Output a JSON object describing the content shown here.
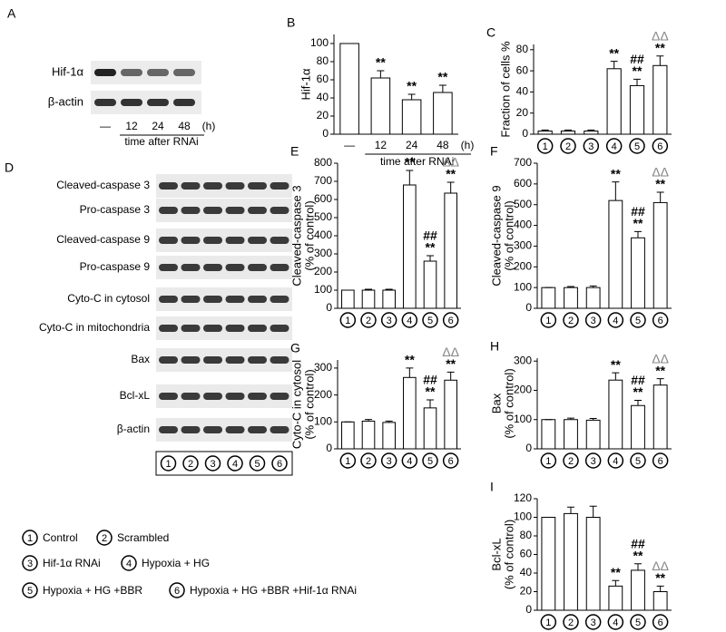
{
  "chart_data": [
    {
      "type": "bar",
      "panel": "B",
      "ylabel": [
        "Hif-1α"
      ],
      "categories": [
        "—",
        "12",
        "24",
        "48"
      ],
      "unit": "(h)",
      "xlabel": "time after RNAi",
      "values": [
        100,
        62,
        38,
        46
      ],
      "errors": [
        0,
        8,
        6,
        8
      ],
      "annotations": [
        null,
        [
          "**"
        ],
        [
          "**"
        ],
        [
          "**"
        ]
      ],
      "ylim": [
        0,
        110
      ],
      "yticks": [
        0,
        20,
        40,
        60,
        80,
        100
      ],
      "color": "#ffffff",
      "circled_categories": false
    },
    {
      "type": "bar",
      "panel": "C",
      "ylabel": [
        "Fraction of cells %"
      ],
      "categories": [
        "1",
        "2",
        "3",
        "4",
        "5",
        "6"
      ],
      "values": [
        3,
        3,
        3,
        62,
        46,
        65
      ],
      "errors": [
        1,
        1,
        1,
        7,
        6,
        9
      ],
      "annotations": [
        null,
        null,
        null,
        [
          "**"
        ],
        [
          "##",
          "**"
        ],
        [
          "ΔΔ",
          "**"
        ]
      ],
      "ylim": [
        0,
        85
      ],
      "yticks": [
        0,
        20,
        40,
        60,
        80
      ],
      "color": "#ffffff",
      "circled_categories": true
    },
    {
      "type": "bar",
      "panel": "E",
      "ylabel": [
        "Cleaved-caspase 3",
        "(% of control)"
      ],
      "categories": [
        "1",
        "2",
        "3",
        "4",
        "5",
        "6"
      ],
      "values": [
        100,
        100,
        100,
        680,
        260,
        635
      ],
      "errors": [
        0,
        5,
        5,
        80,
        30,
        60
      ],
      "annotations": [
        null,
        null,
        null,
        [
          "**"
        ],
        [
          "##",
          "**"
        ],
        [
          "ΔΔ",
          "**"
        ]
      ],
      "ylim": [
        0,
        800
      ],
      "yticks": [
        0,
        100,
        200,
        300,
        400,
        500,
        600,
        700,
        800
      ],
      "color": "#ffffff",
      "circled_categories": true
    },
    {
      "type": "bar",
      "panel": "F",
      "ylabel": [
        "Cleaved-caspase 9",
        "(% of control)"
      ],
      "categories": [
        "1",
        "2",
        "3",
        "4",
        "5",
        "6"
      ],
      "values": [
        100,
        100,
        100,
        520,
        340,
        510
      ],
      "errors": [
        0,
        5,
        8,
        90,
        30,
        50
      ],
      "annotations": [
        null,
        null,
        null,
        [
          "**"
        ],
        [
          "##",
          "**"
        ],
        [
          "ΔΔ",
          "**"
        ]
      ],
      "ylim": [
        0,
        700
      ],
      "yticks": [
        0,
        100,
        200,
        300,
        400,
        500,
        600,
        700
      ],
      "color": "#ffffff",
      "circled_categories": true
    },
    {
      "type": "bar",
      "panel": "G",
      "ylabel": [
        "Cyto-C in cytosol",
        "(% of control)"
      ],
      "categories": [
        "1",
        "2",
        "3",
        "4",
        "5",
        "6"
      ],
      "values": [
        100,
        103,
        98,
        265,
        152,
        255
      ],
      "errors": [
        0,
        6,
        5,
        35,
        30,
        30
      ],
      "annotations": [
        null,
        null,
        null,
        [
          "**"
        ],
        [
          "##",
          "**"
        ],
        [
          "ΔΔ",
          "**"
        ]
      ],
      "ylim": [
        0,
        330
      ],
      "yticks": [
        0,
        100,
        200,
        300
      ],
      "color": "#ffffff",
      "circled_categories": true
    },
    {
      "type": "bar",
      "panel": "H",
      "ylabel": [
        "Bax",
        "(% of control)"
      ],
      "categories": [
        "1",
        "2",
        "3",
        "4",
        "5",
        "6"
      ],
      "values": [
        100,
        100,
        98,
        235,
        148,
        218
      ],
      "errors": [
        0,
        5,
        6,
        25,
        18,
        22
      ],
      "annotations": [
        null,
        null,
        null,
        [
          "**"
        ],
        [
          "##",
          "**"
        ],
        [
          "ΔΔ",
          "**"
        ]
      ],
      "ylim": [
        0,
        310
      ],
      "yticks": [
        0,
        100,
        200,
        300
      ],
      "color": "#ffffff",
      "circled_categories": true
    },
    {
      "type": "bar",
      "panel": "I",
      "ylabel": [
        "Bcl-xL",
        "(% of control)"
      ],
      "categories": [
        "1",
        "2",
        "3",
        "4",
        "5",
        "6"
      ],
      "values": [
        100,
        104,
        100,
        26,
        43,
        20
      ],
      "errors": [
        0,
        7,
        12,
        6,
        7,
        6
      ],
      "annotations": [
        null,
        null,
        null,
        [
          "**"
        ],
        [
          "##",
          "**"
        ],
        [
          "ΔΔ",
          "**"
        ]
      ],
      "ylim": [
        0,
        120
      ],
      "yticks": [
        0,
        20,
        40,
        60,
        80,
        100,
        120
      ],
      "color": "#ffffff",
      "circled_categories": true
    }
  ],
  "blot_a": {
    "panel": "A",
    "rows": [
      "Hif-1α",
      "β-actin"
    ],
    "lanes": [
      "—",
      "12",
      "24",
      "48"
    ],
    "unit": "(h)",
    "xlabel": "time after RNAi"
  },
  "blot_d": {
    "panel": "D",
    "rows": [
      "Cleaved-caspase 3",
      "Pro-caspase 3",
      "Cleaved-caspase 9",
      "Pro-caspase 9",
      "Cyto-C in cytosol",
      "Cyto-C in mitochondria",
      "Bax",
      "Bcl-xL",
      "β-actin"
    ],
    "lanes": [
      "1",
      "2",
      "3",
      "4",
      "5",
      "6"
    ]
  },
  "legend": [
    {
      "num": "1",
      "label": "Control"
    },
    {
      "num": "2",
      "label": "Scrambled"
    },
    {
      "num": "3",
      "label": "Hif-1α RNAi"
    },
    {
      "num": "4",
      "label": "Hypoxia + HG"
    },
    {
      "num": "5",
      "label": "Hypoxia + HG +BBR"
    },
    {
      "num": "6",
      "label": "Hypoxia + HG +BBR +Hif-1α RNAi"
    }
  ]
}
